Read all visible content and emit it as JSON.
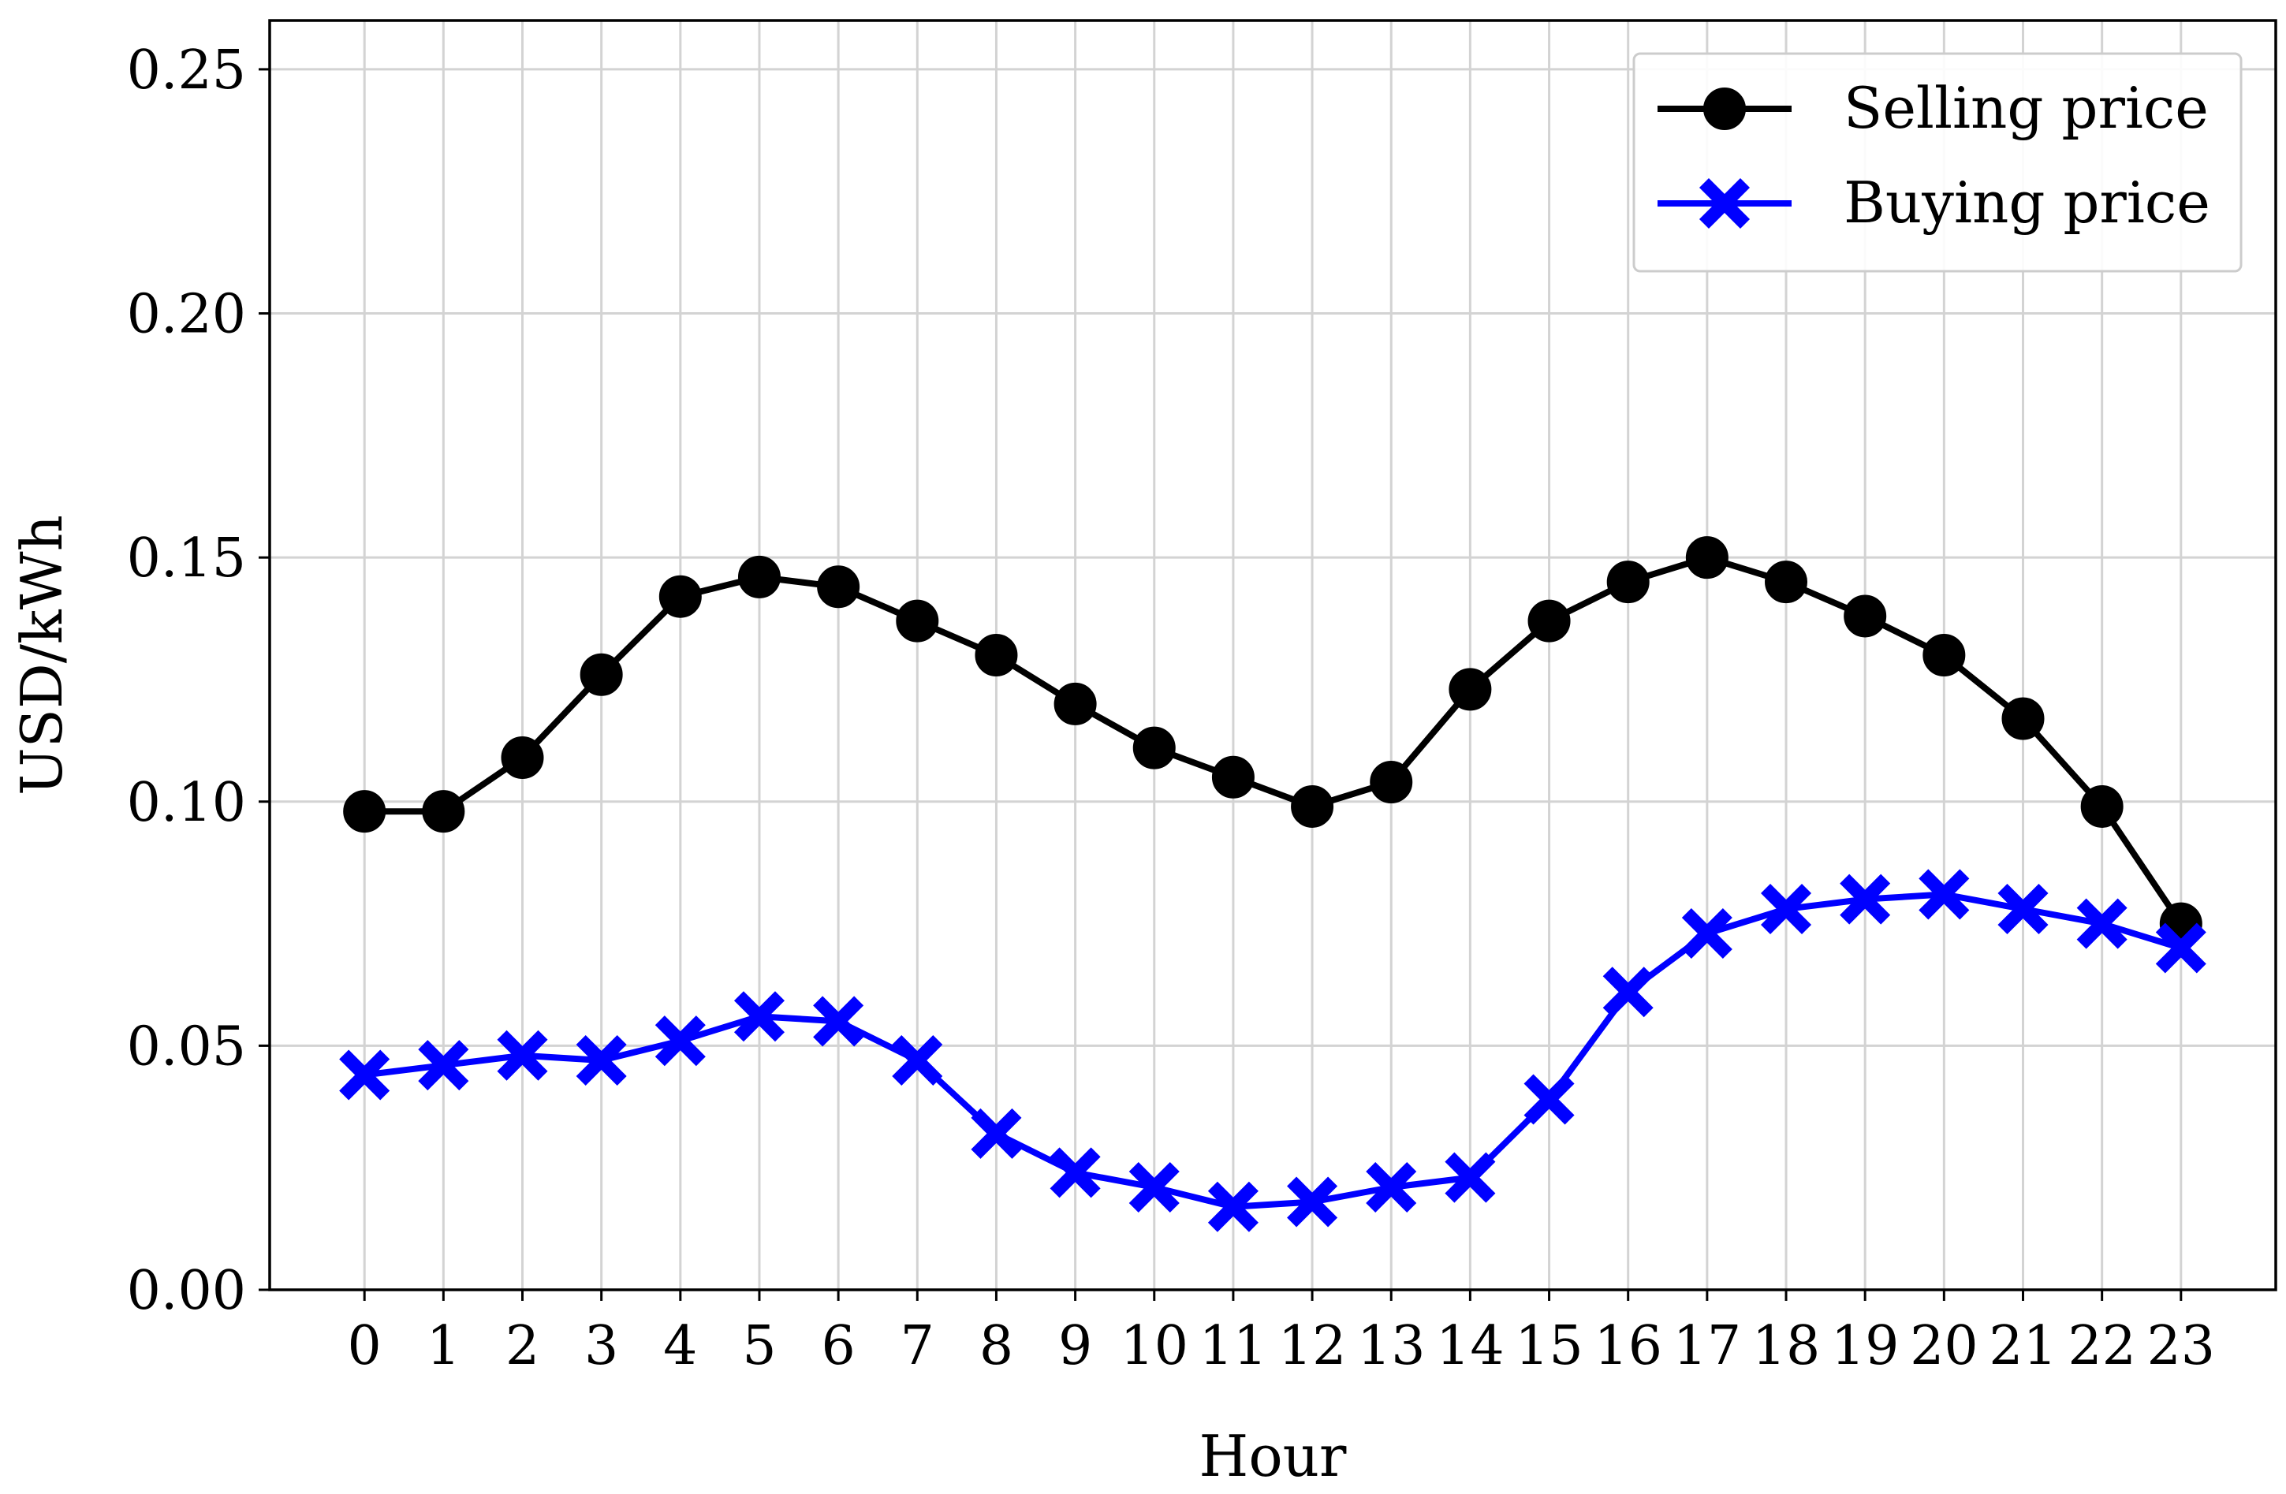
{
  "chart_data": {
    "type": "line",
    "title": "",
    "xlabel": "Hour",
    "ylabel": "USD/kWh",
    "xlim": [
      -1.2,
      24.2
    ],
    "ylim": [
      0,
      0.26
    ],
    "x_ticks": [
      0,
      1,
      2,
      3,
      4,
      5,
      6,
      7,
      8,
      9,
      10,
      11,
      12,
      13,
      14,
      15,
      16,
      17,
      18,
      19,
      20,
      21,
      22,
      23
    ],
    "y_ticks": [
      0.0,
      0.05,
      0.1,
      0.15,
      0.2,
      0.25
    ],
    "y_tick_labels": [
      "0.00",
      "0.05",
      "0.10",
      "0.15",
      "0.20",
      "0.25"
    ],
    "grid": true,
    "legend_position": "upper-right",
    "x": [
      0,
      1,
      2,
      3,
      4,
      5,
      6,
      7,
      8,
      9,
      10,
      11,
      12,
      13,
      14,
      15,
      16,
      17,
      18,
      19,
      20,
      21,
      22,
      23
    ],
    "series": [
      {
        "name": "Selling price",
        "color": "#000000",
        "marker": "circle",
        "values": [
          0.098,
          0.098,
          0.109,
          0.126,
          0.142,
          0.146,
          0.144,
          0.137,
          0.13,
          0.12,
          0.111,
          0.105,
          0.099,
          0.104,
          0.123,
          0.137,
          0.145,
          0.15,
          0.145,
          0.138,
          0.13,
          0.117,
          0.099,
          0.075
        ]
      },
      {
        "name": "Buying price",
        "color": "#0000ff",
        "marker": "x-cross",
        "values": [
          0.044,
          0.046,
          0.048,
          0.047,
          0.051,
          0.056,
          0.055,
          0.047,
          0.032,
          0.024,
          0.021,
          0.017,
          0.018,
          0.021,
          0.023,
          0.039,
          0.061,
          0.073,
          0.078,
          0.08,
          0.081,
          0.078,
          0.075,
          0.07
        ]
      }
    ]
  }
}
